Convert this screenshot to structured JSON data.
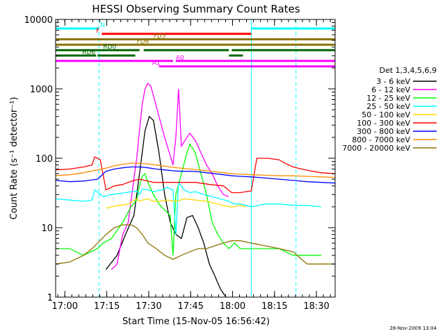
{
  "chart_data": {
    "type": "line",
    "title": "HESSI Observing Summary Count Rates",
    "xlabel": "Start Time (15-Nov-05 16:56:42)",
    "ylabel": "Count Rate (s⁻¹ detector⁻¹)",
    "yscale": "log",
    "ylim": [
      1,
      10000
    ],
    "xlim_minutes_since_start": [
      0,
      100
    ],
    "x_ticks": [
      {
        "label": "17:00",
        "t": 3.3
      },
      {
        "label": "17:15",
        "t": 18.3
      },
      {
        "label": "17:30",
        "t": 33.3
      },
      {
        "label": "17:45",
        "t": 48.3
      },
      {
        "label": "18:00",
        "t": 63.3
      },
      {
        "label": "18:15",
        "t": 78.3
      },
      {
        "label": "18:30",
        "t": 93.3
      }
    ],
    "y_ticks": [
      {
        "label": "1",
        "v": 1
      },
      {
        "label": "10",
        "v": 10
      },
      {
        "label": "100",
        "v": 100
      },
      {
        "label": "1000",
        "v": 1000
      },
      {
        "label": "10000",
        "v": 10000
      }
    ],
    "legend_title": "Det 1,3,4,5,6,9",
    "legend_position": "right",
    "timestamp": "28-Nov-2009 13:04",
    "series": [
      {
        "name": "3 - 6 keV",
        "color": "#000000",
        "points": [
          [
            18,
            2.5
          ],
          [
            22,
            4
          ],
          [
            25,
            8
          ],
          [
            28,
            15
          ],
          [
            30,
            60
          ],
          [
            32,
            250
          ],
          [
            33.5,
            400
          ],
          [
            35,
            350
          ],
          [
            37,
            120
          ],
          [
            39,
            30
          ],
          [
            41,
            12
          ],
          [
            43,
            8
          ],
          [
            45,
            7
          ],
          [
            47,
            14
          ],
          [
            49,
            15
          ],
          [
            51,
            10
          ],
          [
            53,
            6
          ],
          [
            55,
            3
          ],
          [
            57,
            2
          ],
          [
            59,
            1.3
          ],
          [
            61,
            1
          ]
        ]
      },
      {
        "name": "6 - 12 keV",
        "color": "#ff00ff",
        "points": [
          [
            20,
            2.5
          ],
          [
            22,
            3
          ],
          [
            23,
            5
          ],
          [
            24,
            8
          ],
          [
            26,
            12
          ],
          [
            27,
            25
          ],
          [
            29,
            100
          ],
          [
            30,
            250
          ],
          [
            31,
            600
          ],
          [
            32,
            1000
          ],
          [
            33,
            1200
          ],
          [
            34,
            1100
          ],
          [
            35,
            800
          ],
          [
            37,
            400
          ],
          [
            39,
            200
          ],
          [
            41,
            110
          ],
          [
            42,
            80
          ],
          [
            43,
            200
          ],
          [
            44,
            1000
          ],
          [
            45,
            150
          ],
          [
            47,
            200
          ],
          [
            48,
            230
          ],
          [
            50,
            180
          ],
          [
            52,
            120
          ],
          [
            54,
            80
          ],
          [
            56,
            60
          ],
          [
            58,
            40
          ],
          [
            60,
            30
          ],
          [
            62,
            28
          ]
        ]
      },
      {
        "name": "12 - 25 keV",
        "color": "#00ff00",
        "points": [
          [
            0,
            5
          ],
          [
            5,
            5
          ],
          [
            10,
            4
          ],
          [
            15,
            5
          ],
          [
            17,
            6
          ],
          [
            20,
            7
          ],
          [
            24,
            12
          ],
          [
            27,
            20
          ],
          [
            29,
            25
          ],
          [
            30,
            40
          ],
          [
            31,
            55
          ],
          [
            32,
            60
          ],
          [
            33,
            45
          ],
          [
            35,
            30
          ],
          [
            37,
            22
          ],
          [
            39,
            18
          ],
          [
            41,
            15
          ],
          [
            42,
            4
          ],
          [
            43,
            30
          ],
          [
            45,
            60
          ],
          [
            47,
            120
          ],
          [
            48,
            160
          ],
          [
            50,
            120
          ],
          [
            52,
            60
          ],
          [
            54,
            30
          ],
          [
            56,
            12
          ],
          [
            58,
            8
          ],
          [
            60,
            6
          ],
          [
            62,
            5
          ],
          [
            64,
            6
          ],
          [
            66,
            5
          ],
          [
            70,
            5
          ],
          [
            75,
            5
          ],
          [
            80,
            5
          ],
          [
            85,
            4
          ],
          [
            90,
            4
          ],
          [
            95,
            4
          ]
        ]
      },
      {
        "name": "25 - 50 keV",
        "color": "#00ffff",
        "points": [
          [
            0,
            26
          ],
          [
            5,
            25
          ],
          [
            10,
            24
          ],
          [
            13,
            25
          ],
          [
            14,
            35
          ],
          [
            17,
            28
          ],
          [
            20,
            30
          ],
          [
            25,
            32
          ],
          [
            29,
            34
          ],
          [
            30,
            30
          ],
          [
            31,
            36
          ],
          [
            33,
            35
          ],
          [
            35,
            33
          ],
          [
            38,
            35
          ],
          [
            40,
            38
          ],
          [
            42,
            35
          ],
          [
            43,
            8
          ],
          [
            44,
            45
          ],
          [
            46,
            35
          ],
          [
            48,
            32
          ],
          [
            50,
            33
          ],
          [
            53,
            30
          ],
          [
            56,
            28
          ],
          [
            59,
            26
          ],
          [
            62,
            24
          ],
          [
            64,
            22
          ],
          [
            66,
            22
          ],
          [
            70,
            20
          ],
          [
            75,
            22
          ],
          [
            80,
            22
          ],
          [
            85,
            21
          ],
          [
            90,
            21
          ],
          [
            95,
            20
          ]
        ]
      },
      {
        "name": "50 - 100 keV",
        "color": "#ffd700",
        "points": [
          [
            18,
            19
          ],
          [
            20,
            20
          ],
          [
            23,
            21
          ],
          [
            26,
            22
          ],
          [
            29,
            26
          ],
          [
            30,
            24
          ],
          [
            31,
            25
          ],
          [
            33,
            26
          ],
          [
            35,
            24
          ],
          [
            37,
            24
          ],
          [
            40,
            25
          ],
          [
            43,
            24
          ],
          [
            46,
            26
          ],
          [
            50,
            25
          ],
          [
            54,
            24
          ],
          [
            58,
            22
          ],
          [
            62,
            20
          ],
          [
            64,
            20
          ],
          [
            66,
            21
          ],
          [
            68,
            20
          ]
        ]
      },
      {
        "name": "100 - 300 keV",
        "color": "#ff0000",
        "points": [
          [
            0,
            68
          ],
          [
            5,
            70
          ],
          [
            10,
            75
          ],
          [
            13,
            80
          ],
          [
            14,
            105
          ],
          [
            16,
            95
          ],
          [
            18,
            35
          ],
          [
            21,
            40
          ],
          [
            24,
            42
          ],
          [
            26,
            45
          ],
          [
            28,
            48
          ],
          [
            30,
            50
          ],
          [
            32,
            48
          ],
          [
            35,
            45
          ],
          [
            40,
            45
          ],
          [
            45,
            45
          ],
          [
            50,
            45
          ],
          [
            55,
            42
          ],
          [
            60,
            40
          ],
          [
            63,
            32
          ],
          [
            66,
            32
          ],
          [
            70,
            34
          ],
          [
            72,
            100
          ],
          [
            76,
            100
          ],
          [
            80,
            95
          ],
          [
            82,
            85
          ],
          [
            85,
            75
          ],
          [
            88,
            70
          ],
          [
            92,
            65
          ],
          [
            95,
            62
          ],
          [
            100,
            60
          ]
        ]
      },
      {
        "name": "300 - 800 keV",
        "color": "#0000ff",
        "points": [
          [
            0,
            48
          ],
          [
            5,
            46
          ],
          [
            10,
            47
          ],
          [
            15,
            50
          ],
          [
            18,
            65
          ],
          [
            21,
            70
          ],
          [
            24,
            73
          ],
          [
            27,
            75
          ],
          [
            30,
            75
          ],
          [
            33,
            73
          ],
          [
            36,
            70
          ],
          [
            39,
            68
          ],
          [
            42,
            66
          ],
          [
            45,
            65
          ],
          [
            48,
            65
          ],
          [
            51,
            64
          ],
          [
            54,
            62
          ],
          [
            57,
            60
          ],
          [
            60,
            58
          ],
          [
            63,
            56
          ],
          [
            66,
            55
          ],
          [
            70,
            54
          ],
          [
            75,
            52
          ],
          [
            80,
            50
          ],
          [
            85,
            48
          ],
          [
            90,
            46
          ],
          [
            95,
            45
          ],
          [
            100,
            44
          ]
        ]
      },
      {
        "name": "800 - 7000 keV",
        "color": "#ff8c00",
        "points": [
          [
            0,
            56
          ],
          [
            5,
            58
          ],
          [
            10,
            62
          ],
          [
            15,
            68
          ],
          [
            18,
            72
          ],
          [
            21,
            78
          ],
          [
            24,
            82
          ],
          [
            27,
            85
          ],
          [
            30,
            85
          ],
          [
            33,
            83
          ],
          [
            36,
            80
          ],
          [
            39,
            77
          ],
          [
            42,
            74
          ],
          [
            45,
            72
          ],
          [
            48,
            70
          ],
          [
            51,
            68
          ],
          [
            54,
            66
          ],
          [
            57,
            64
          ],
          [
            60,
            62
          ],
          [
            63,
            60
          ],
          [
            66,
            59
          ],
          [
            70,
            58
          ],
          [
            75,
            57
          ],
          [
            80,
            56
          ],
          [
            85,
            56
          ],
          [
            90,
            55
          ],
          [
            95,
            54
          ],
          [
            100,
            53
          ]
        ]
      },
      {
        "name": "7000 - 20000 keV",
        "color": "#8b7300",
        "points": [
          [
            0,
            3
          ],
          [
            5,
            3.2
          ],
          [
            10,
            4
          ],
          [
            13,
            5
          ],
          [
            15,
            6
          ],
          [
            18,
            8
          ],
          [
            21,
            10
          ],
          [
            24,
            11
          ],
          [
            27,
            11
          ],
          [
            29,
            10
          ],
          [
            31,
            8
          ],
          [
            33,
            6
          ],
          [
            36,
            5
          ],
          [
            39,
            4
          ],
          [
            42,
            3.5
          ],
          [
            45,
            4
          ],
          [
            48,
            4.5
          ],
          [
            51,
            5
          ],
          [
            54,
            5
          ],
          [
            57,
            5.5
          ],
          [
            60,
            6
          ],
          [
            63,
            6.5
          ],
          [
            66,
            6.5
          ],
          [
            70,
            6
          ],
          [
            75,
            5.5
          ],
          [
            80,
            5
          ],
          [
            85,
            4.5
          ],
          [
            88,
            3.5
          ],
          [
            90,
            3
          ],
          [
            93,
            3
          ],
          [
            95,
            3
          ],
          [
            100,
            3
          ]
        ]
      }
    ],
    "state_bars": [
      {
        "label": "N",
        "color": "#00ffff",
        "segments": [
          [
            0,
            15.5
          ],
          [
            70,
            100
          ]
        ],
        "label_t": 16
      },
      {
        "label": "F",
        "color": "#ff0000",
        "segments": [
          [
            16.5,
            70
          ]
        ],
        "label_t": 14.5
      },
      {
        "label": "FD5",
        "color": "#8b7300",
        "segments": [
          [
            0,
            100
          ]
        ],
        "label_t": 35
      },
      {
        "label": "FD6",
        "color": "#8b7300",
        "segments": [
          [
            0,
            33
          ],
          [
            33,
            100
          ]
        ],
        "label_t": 29
      },
      {
        "label": "RD0",
        "color": "#006400",
        "segments": [
          [
            0,
            30
          ],
          [
            31.5,
            62
          ],
          [
            63,
            100
          ]
        ],
        "label_t": 17
      },
      {
        "label": "RD6",
        "color": "#006400",
        "segments": [
          [
            0,
            14.5
          ],
          [
            15,
            28.5
          ],
          [
            62,
            67
          ]
        ],
        "label_t": 9.5
      },
      {
        "label": "A0",
        "color": "#ff00ff",
        "segments": [
          [
            0,
            42
          ],
          [
            43,
            100
          ]
        ],
        "label_t": 43
      },
      {
        "label": "A1",
        "color": "#ff00ff",
        "segments": [
          [
            37,
            100
          ]
        ],
        "label_t": 34.5
      }
    ],
    "vertical_markers": [
      {
        "t": 0,
        "color": "#00ffff",
        "style": "solid"
      },
      {
        "t": 15.5,
        "color": "#00ffff",
        "style": "dashed"
      },
      {
        "t": 70,
        "color": "#00ffff",
        "style": "solid"
      },
      {
        "t": 86,
        "color": "#00ffff",
        "style": "dashed"
      }
    ]
  }
}
